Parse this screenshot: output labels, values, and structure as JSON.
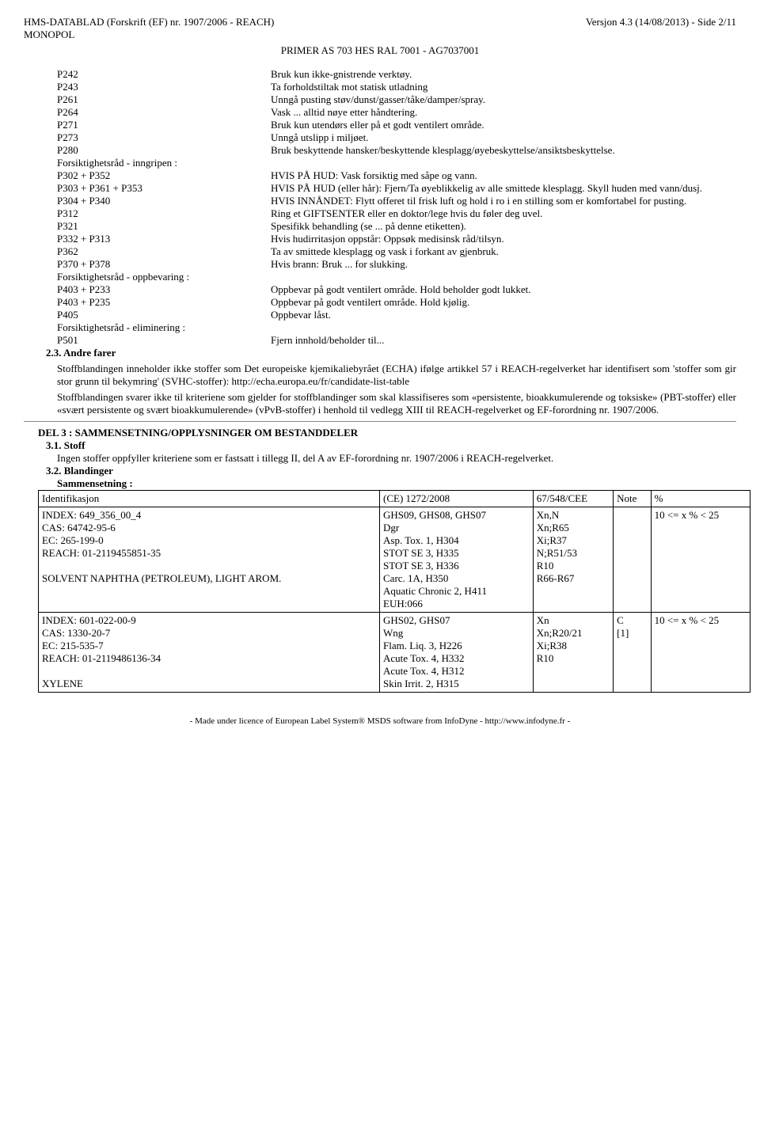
{
  "header": {
    "left1": "HMS-DATABLAD (Forskrift (EF) nr. 1907/2006 - REACH)",
    "left2": "MONOPOL",
    "right": "Versjon 4.3 (14/08/2013) - Side 2/11",
    "center": "PRIMER AS 703 HES RAL 7001 - AG7037001"
  },
  "pcodes": [
    {
      "code": "P242",
      "text": "Bruk kun ikke-gnistrende verktøy."
    },
    {
      "code": "P243",
      "text": "Ta forholdstiltak mot statisk utladning"
    },
    {
      "code": "P261",
      "text": "Unngå pusting støv/dunst/gasser/tåke/damper/spray."
    },
    {
      "code": "P264",
      "text": "Vask ... alltid nøye etter håndtering."
    },
    {
      "code": "P271",
      "text": "Bruk kun utendørs eller på et godt ventilert område."
    },
    {
      "code": "P273",
      "text": "Unngå utslipp i miljøet."
    },
    {
      "code": "P280",
      "text": "Bruk beskyttende hansker/beskyttende klesplagg/øyebeskyttelse/ansiktsbeskyttelse."
    }
  ],
  "sub1": "Forsiktighetsråd - inngripen :",
  "pcodes2": [
    {
      "code": "P302 + P352",
      "text": "HVIS PÅ HUD: Vask forsiktig med såpe og vann."
    },
    {
      "code": "P303 + P361 + P353",
      "text": "HVIS PÅ HUD (eller hår): Fjern/Ta øyeblikkelig av alle smittede klesplagg. Skyll huden med vann/dusj."
    },
    {
      "code": "P304 + P340",
      "text": "HVIS INNÅNDET: Flytt offeret til frisk luft og hold i ro i en stilling som er komfortabel for pusting."
    },
    {
      "code": "P312",
      "text": "Ring et GIFTSENTER eller en doktor/lege hvis du føler deg uvel."
    },
    {
      "code": "P321",
      "text": "Spesifikk behandling (se ... på denne etiketten)."
    },
    {
      "code": "P332 + P313",
      "text": "Hvis hudirritasjon oppstår: Oppsøk medisinsk råd/tilsyn."
    },
    {
      "code": "P362",
      "text": "Ta av smittede klesplagg og vask i forkant av gjenbruk."
    },
    {
      "code": "P370 + P378",
      "text": "Hvis brann: Bruk ... for slukking."
    }
  ],
  "sub2": "Forsiktighetsråd - oppbevaring :",
  "pcodes3": [
    {
      "code": "P403 + P233",
      "text": "Oppbevar på godt ventilert område. Hold beholder godt lukket."
    },
    {
      "code": "P403 + P235",
      "text": "Oppbevar på godt ventilert område. Hold kjølig."
    },
    {
      "code": "P405",
      "text": "Oppbevar låst."
    }
  ],
  "sub3": "Forsiktighetsråd - eliminering :",
  "pcodes4": [
    {
      "code": "P501",
      "text": "Fjern innhold/beholder til..."
    }
  ],
  "s23": "2.3. Andre farer",
  "para1": "Stoffblandingen inneholder ikke stoffer som Det europeiske kjemikaliebyrået (ECHA) ifølge artikkel 57 i REACH-regelverket har identifisert som 'stoffer som gir stor grunn til bekymring' (SVHC-stoffer): http://echa.europa.eu/fr/candidate-list-table",
  "para2": "Stoffblandingen svarer ikke til kriteriene som gjelder for stoffblandinger som skal klassifiseres som «persistente, bioakkumulerende og toksiske» (PBT-stoffer) eller «svært persistente og svært bioakkumulerende» (vPvB-stoffer) i henhold til vedlegg XIII til REACH-regelverket og EF-forordning nr. 1907/2006.",
  "del3": "DEL 3 : SAMMENSETNING/OPPLYSNINGER OM BESTANDDELER",
  "s31": "3.1. Stoff",
  "s31text": "Ingen stoffer oppfyller kriteriene som er fastsatt i tillegg II, del A av EF-forordning nr. 1907/2006 i REACH-regelverket.",
  "s32": "3.2. Blandinger",
  "s32sub": "Sammensetning :",
  "table": {
    "headers": [
      "Identifikasjon",
      "(CE) 1272/2008",
      "67/548/CEE",
      "Note",
      "%"
    ],
    "rows": [
      {
        "c1": "INDEX: 649_356_00_4\nCAS: 64742-95-6\nEC: 265-199-0\nREACH: 01-2119455851-35\n\nSOLVENT NAPHTHA (PETROLEUM), LIGHT AROM.",
        "c2": "GHS09, GHS08, GHS07\nDgr\nAsp. Tox. 1, H304\nSTOT SE 3, H335\nSTOT SE 3, H336\nCarc. 1A, H350\nAquatic Chronic 2, H411\nEUH:066",
        "c3": "Xn,N\nXn;R65\nXi;R37\nN;R51/53\nR10\nR66-R67",
        "c4": "",
        "c5": "10 <= x % < 25"
      },
      {
        "c1": "INDEX: 601-022-00-9\nCAS: 1330-20-7\nEC: 215-535-7\nREACH: 01-2119486136-34\n\nXYLENE",
        "c2": "GHS02, GHS07\nWng\nFlam. Liq. 3, H226\nAcute Tox. 4, H332\nAcute Tox. 4, H312\nSkin Irrit. 2, H315",
        "c3": "Xn\nXn;R20/21\nXi;R38\nR10",
        "c4": "C\n[1]",
        "c5": "10 <= x % < 25"
      }
    ]
  },
  "footer": "- Made under licence of European Label System® MSDS software from InfoDyne  - http://www.infodyne.fr -"
}
